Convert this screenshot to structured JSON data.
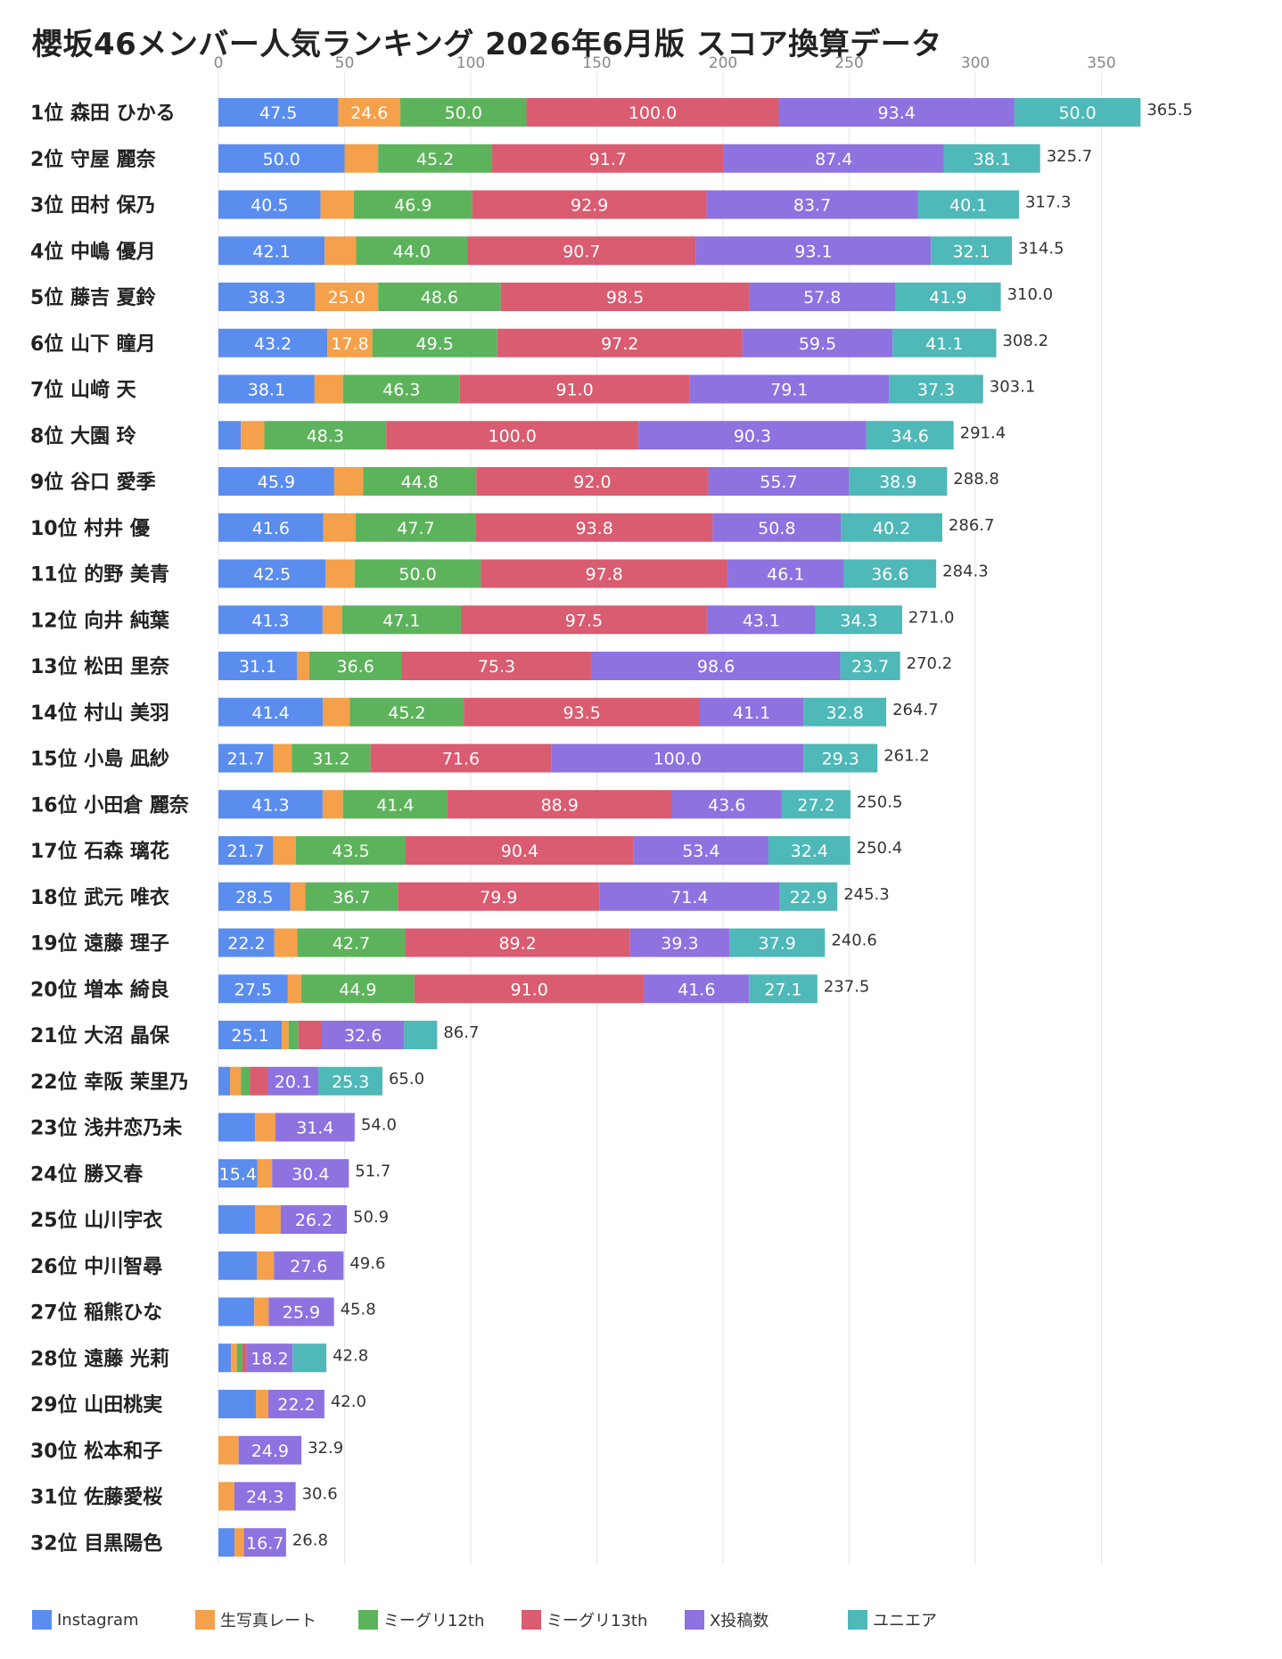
{
  "chart_data": {
    "type": "bar",
    "orientation": "horizontal",
    "stacked": true,
    "title": "櫻坂46メンバー人気ランキング 2026年6月版 スコア換算データ",
    "xlim": [
      0,
      365.5
    ],
    "xticks": [
      0,
      50,
      100,
      150,
      200,
      250,
      300,
      350
    ],
    "grid": true,
    "legend_position": "bottom",
    "series": [
      {
        "name": "Instagram",
        "color": "#5b8def"
      },
      {
        "name": "生写真レート",
        "color": "#f5a04a"
      },
      {
        "name": "ミーグリ12th",
        "color": "#5db35b"
      },
      {
        "name": "ミーグリ13th",
        "color": "#d95c70"
      },
      {
        "name": "X投稿数",
        "color": "#8d72e0"
      },
      {
        "name": "ユニエア",
        "color": "#4fb8b8"
      }
    ],
    "rows": [
      {
        "label": "1位 森田 ひかる",
        "total": "365.5",
        "values": [
          47.5,
          24.6,
          50.0,
          100.0,
          93.4,
          50.0
        ],
        "labels": [
          "47.5",
          "24.6",
          "50.0",
          "100.0",
          "93.4",
          "50.0"
        ]
      },
      {
        "label": "2位 守屋 麗奈",
        "total": "325.7",
        "values": [
          50.0,
          13.3,
          45.2,
          91.7,
          87.4,
          38.1
        ],
        "labels": [
          "50.0",
          "",
          "45.2",
          "91.7",
          "87.4",
          "38.1"
        ]
      },
      {
        "label": "3位 田村 保乃",
        "total": "317.3",
        "values": [
          40.5,
          13.2,
          46.9,
          92.9,
          83.7,
          40.1
        ],
        "labels": [
          "40.5",
          "",
          "46.9",
          "92.9",
          "83.7",
          "40.1"
        ]
      },
      {
        "label": "4位 中嶋 優月",
        "total": "314.5",
        "values": [
          42.1,
          12.5,
          44.0,
          90.7,
          93.1,
          32.1
        ],
        "labels": [
          "42.1",
          "",
          "44.0",
          "90.7",
          "93.1",
          "32.1"
        ]
      },
      {
        "label": "5位 藤吉 夏鈴",
        "total": "310.0",
        "values": [
          38.3,
          25.0,
          48.6,
          98.5,
          57.8,
          41.9
        ],
        "labels": [
          "38.3",
          "25.0",
          "48.6",
          "98.5",
          "57.8",
          "41.9"
        ]
      },
      {
        "label": "6位 山下 瞳月",
        "total": "308.2",
        "values": [
          43.2,
          17.8,
          49.5,
          97.2,
          59.5,
          41.1
        ],
        "labels": [
          "43.2",
          "17.8",
          "49.5",
          "97.2",
          "59.5",
          "41.1"
        ]
      },
      {
        "label": "7位 山﨑 天",
        "total": "303.1",
        "values": [
          38.1,
          11.3,
          46.3,
          91.0,
          79.1,
          37.3
        ],
        "labels": [
          "38.1",
          "",
          "46.3",
          "91.0",
          "79.1",
          "37.3"
        ]
      },
      {
        "label": "8位 大園 玲",
        "total": "291.4",
        "values": [
          8.9,
          9.3,
          48.3,
          100.0,
          90.3,
          34.6
        ],
        "labels": [
          "",
          "",
          "48.3",
          "100.0",
          "90.3",
          "34.6"
        ]
      },
      {
        "label": "9位 谷口 愛季",
        "total": "288.8",
        "values": [
          45.9,
          11.5,
          44.8,
          92.0,
          55.7,
          38.9
        ],
        "labels": [
          "45.9",
          "",
          "44.8",
          "92.0",
          "55.7",
          "38.9"
        ]
      },
      {
        "label": "10位 村井 優",
        "total": "286.7",
        "values": [
          41.6,
          12.8,
          47.7,
          93.8,
          50.8,
          40.2
        ],
        "labels": [
          "41.6",
          "",
          "47.7",
          "93.8",
          "50.8",
          "40.2"
        ]
      },
      {
        "label": "11位 的野 美青",
        "total": "284.3",
        "values": [
          42.5,
          11.5,
          50.0,
          97.8,
          46.1,
          36.6
        ],
        "labels": [
          "42.5",
          "",
          "50.0",
          "97.8",
          "46.1",
          "36.6"
        ]
      },
      {
        "label": "12位 向井 純葉",
        "total": "271.0",
        "values": [
          41.3,
          7.7,
          47.1,
          97.5,
          43.1,
          34.3
        ],
        "labels": [
          "41.3",
          "",
          "47.1",
          "97.5",
          "43.1",
          "34.3"
        ]
      },
      {
        "label": "13位 松田 里奈",
        "total": "270.2",
        "values": [
          31.1,
          4.9,
          36.6,
          75.3,
          98.6,
          23.7
        ],
        "labels": [
          "31.1",
          "",
          "36.6",
          "75.3",
          "98.6",
          "23.7"
        ]
      },
      {
        "label": "14位 村山 美羽",
        "total": "264.7",
        "values": [
          41.4,
          10.7,
          45.2,
          93.5,
          41.1,
          32.8
        ],
        "labels": [
          "41.4",
          "",
          "45.2",
          "93.5",
          "41.1",
          "32.8"
        ]
      },
      {
        "label": "15位 小島 凪紗",
        "total": "261.2",
        "values": [
          21.7,
          7.4,
          31.2,
          71.6,
          100.0,
          29.3
        ],
        "labels": [
          "21.7",
          "",
          "31.2",
          "71.6",
          "100.0",
          "29.3"
        ]
      },
      {
        "label": "16位 小田倉 麗奈",
        "total": "250.5",
        "values": [
          41.3,
          8.1,
          41.4,
          88.9,
          43.6,
          27.2
        ],
        "labels": [
          "41.3",
          "",
          "41.4",
          "88.9",
          "43.6",
          "27.2"
        ]
      },
      {
        "label": "17位 石森 璃花",
        "total": "250.4",
        "values": [
          21.7,
          9.0,
          43.5,
          90.4,
          53.4,
          32.4
        ],
        "labels": [
          "21.7",
          "",
          "43.5",
          "90.4",
          "53.4",
          "32.4"
        ]
      },
      {
        "label": "18位 武元 唯衣",
        "total": "245.3",
        "values": [
          28.5,
          5.9,
          36.7,
          79.9,
          71.4,
          22.9
        ],
        "labels": [
          "28.5",
          "",
          "36.7",
          "79.9",
          "71.4",
          "22.9"
        ]
      },
      {
        "label": "19位 遠藤 理子",
        "total": "240.6",
        "values": [
          22.2,
          9.1,
          42.7,
          89.2,
          39.3,
          37.9
        ],
        "labels": [
          "22.2",
          "",
          "42.7",
          "89.2",
          "39.3",
          "37.9"
        ]
      },
      {
        "label": "20位 増本 綺良",
        "total": "237.5",
        "values": [
          27.5,
          5.3,
          44.9,
          91.0,
          41.6,
          27.1
        ],
        "labels": [
          "27.5",
          "",
          "44.9",
          "91.0",
          "41.6",
          "27.1"
        ]
      },
      {
        "label": "21位 大沼 晶保",
        "total": "86.7",
        "values": [
          25.1,
          2.7,
          3.9,
          9.3,
          32.6,
          13.1
        ],
        "labels": [
          "25.1",
          "",
          "",
          "",
          "32.6",
          ""
        ]
      },
      {
        "label": "22位 幸阪 茉里乃",
        "total": "65.0",
        "values": [
          4.6,
          4.3,
          3.5,
          7.2,
          20.1,
          25.3
        ],
        "labels": [
          "",
          "",
          "",
          "",
          "20.1",
          "25.3"
        ]
      },
      {
        "label": "23位 浅井恋乃未",
        "total": "54.0",
        "values": [
          14.5,
          8.1,
          0,
          0,
          31.4,
          0
        ],
        "labels": [
          "",
          "",
          "",
          "",
          "31.4",
          ""
        ]
      },
      {
        "label": "24位 勝又春",
        "total": "51.7",
        "values": [
          15.4,
          5.9,
          0,
          0,
          30.4,
          0
        ],
        "labels": [
          "15.4",
          "",
          "",
          "",
          "30.4",
          ""
        ]
      },
      {
        "label": "25位 山川宇衣",
        "total": "50.9",
        "values": [
          14.6,
          10.1,
          0,
          0,
          26.2,
          0
        ],
        "labels": [
          "",
          "",
          "",
          "",
          "26.2",
          ""
        ]
      },
      {
        "label": "26位 中川智尋",
        "total": "49.6",
        "values": [
          15.2,
          6.8,
          0,
          0,
          27.6,
          0
        ],
        "labels": [
          "",
          "",
          "",
          "",
          "27.6",
          ""
        ]
      },
      {
        "label": "27位 稲熊ひな",
        "total": "45.8",
        "values": [
          14.2,
          5.7,
          0,
          0,
          25.9,
          0
        ],
        "labels": [
          "",
          "",
          "",
          "",
          "25.9",
          ""
        ]
      },
      {
        "label": "28位 遠藤 光莉",
        "total": "42.8",
        "values": [
          5.0,
          2.3,
          2.2,
          1.7,
          18.2,
          13.4
        ],
        "labels": [
          "",
          "",
          "",
          "",
          "18.2",
          ""
        ]
      },
      {
        "label": "29位 山田桃実",
        "total": "42.0",
        "values": [
          14.9,
          4.9,
          0,
          0,
          22.2,
          0
        ],
        "labels": [
          "",
          "",
          "",
          "",
          "22.2",
          ""
        ]
      },
      {
        "label": "30位 松本和子",
        "total": "32.9",
        "values": [
          0,
          8.0,
          0,
          0,
          24.9,
          0
        ],
        "labels": [
          "",
          "",
          "",
          "",
          "24.9",
          ""
        ]
      },
      {
        "label": "31位 佐藤愛桜",
        "total": "30.6",
        "values": [
          0,
          6.3,
          0,
          0,
          24.3,
          0
        ],
        "labels": [
          "",
          "",
          "",
          "",
          "24.3",
          ""
        ]
      },
      {
        "label": "32位 目黒陽色",
        "total": "26.8",
        "values": [
          6.4,
          3.7,
          0,
          0,
          16.7,
          0
        ],
        "labels": [
          "",
          "",
          "",
          "",
          "16.7",
          ""
        ]
      }
    ]
  }
}
